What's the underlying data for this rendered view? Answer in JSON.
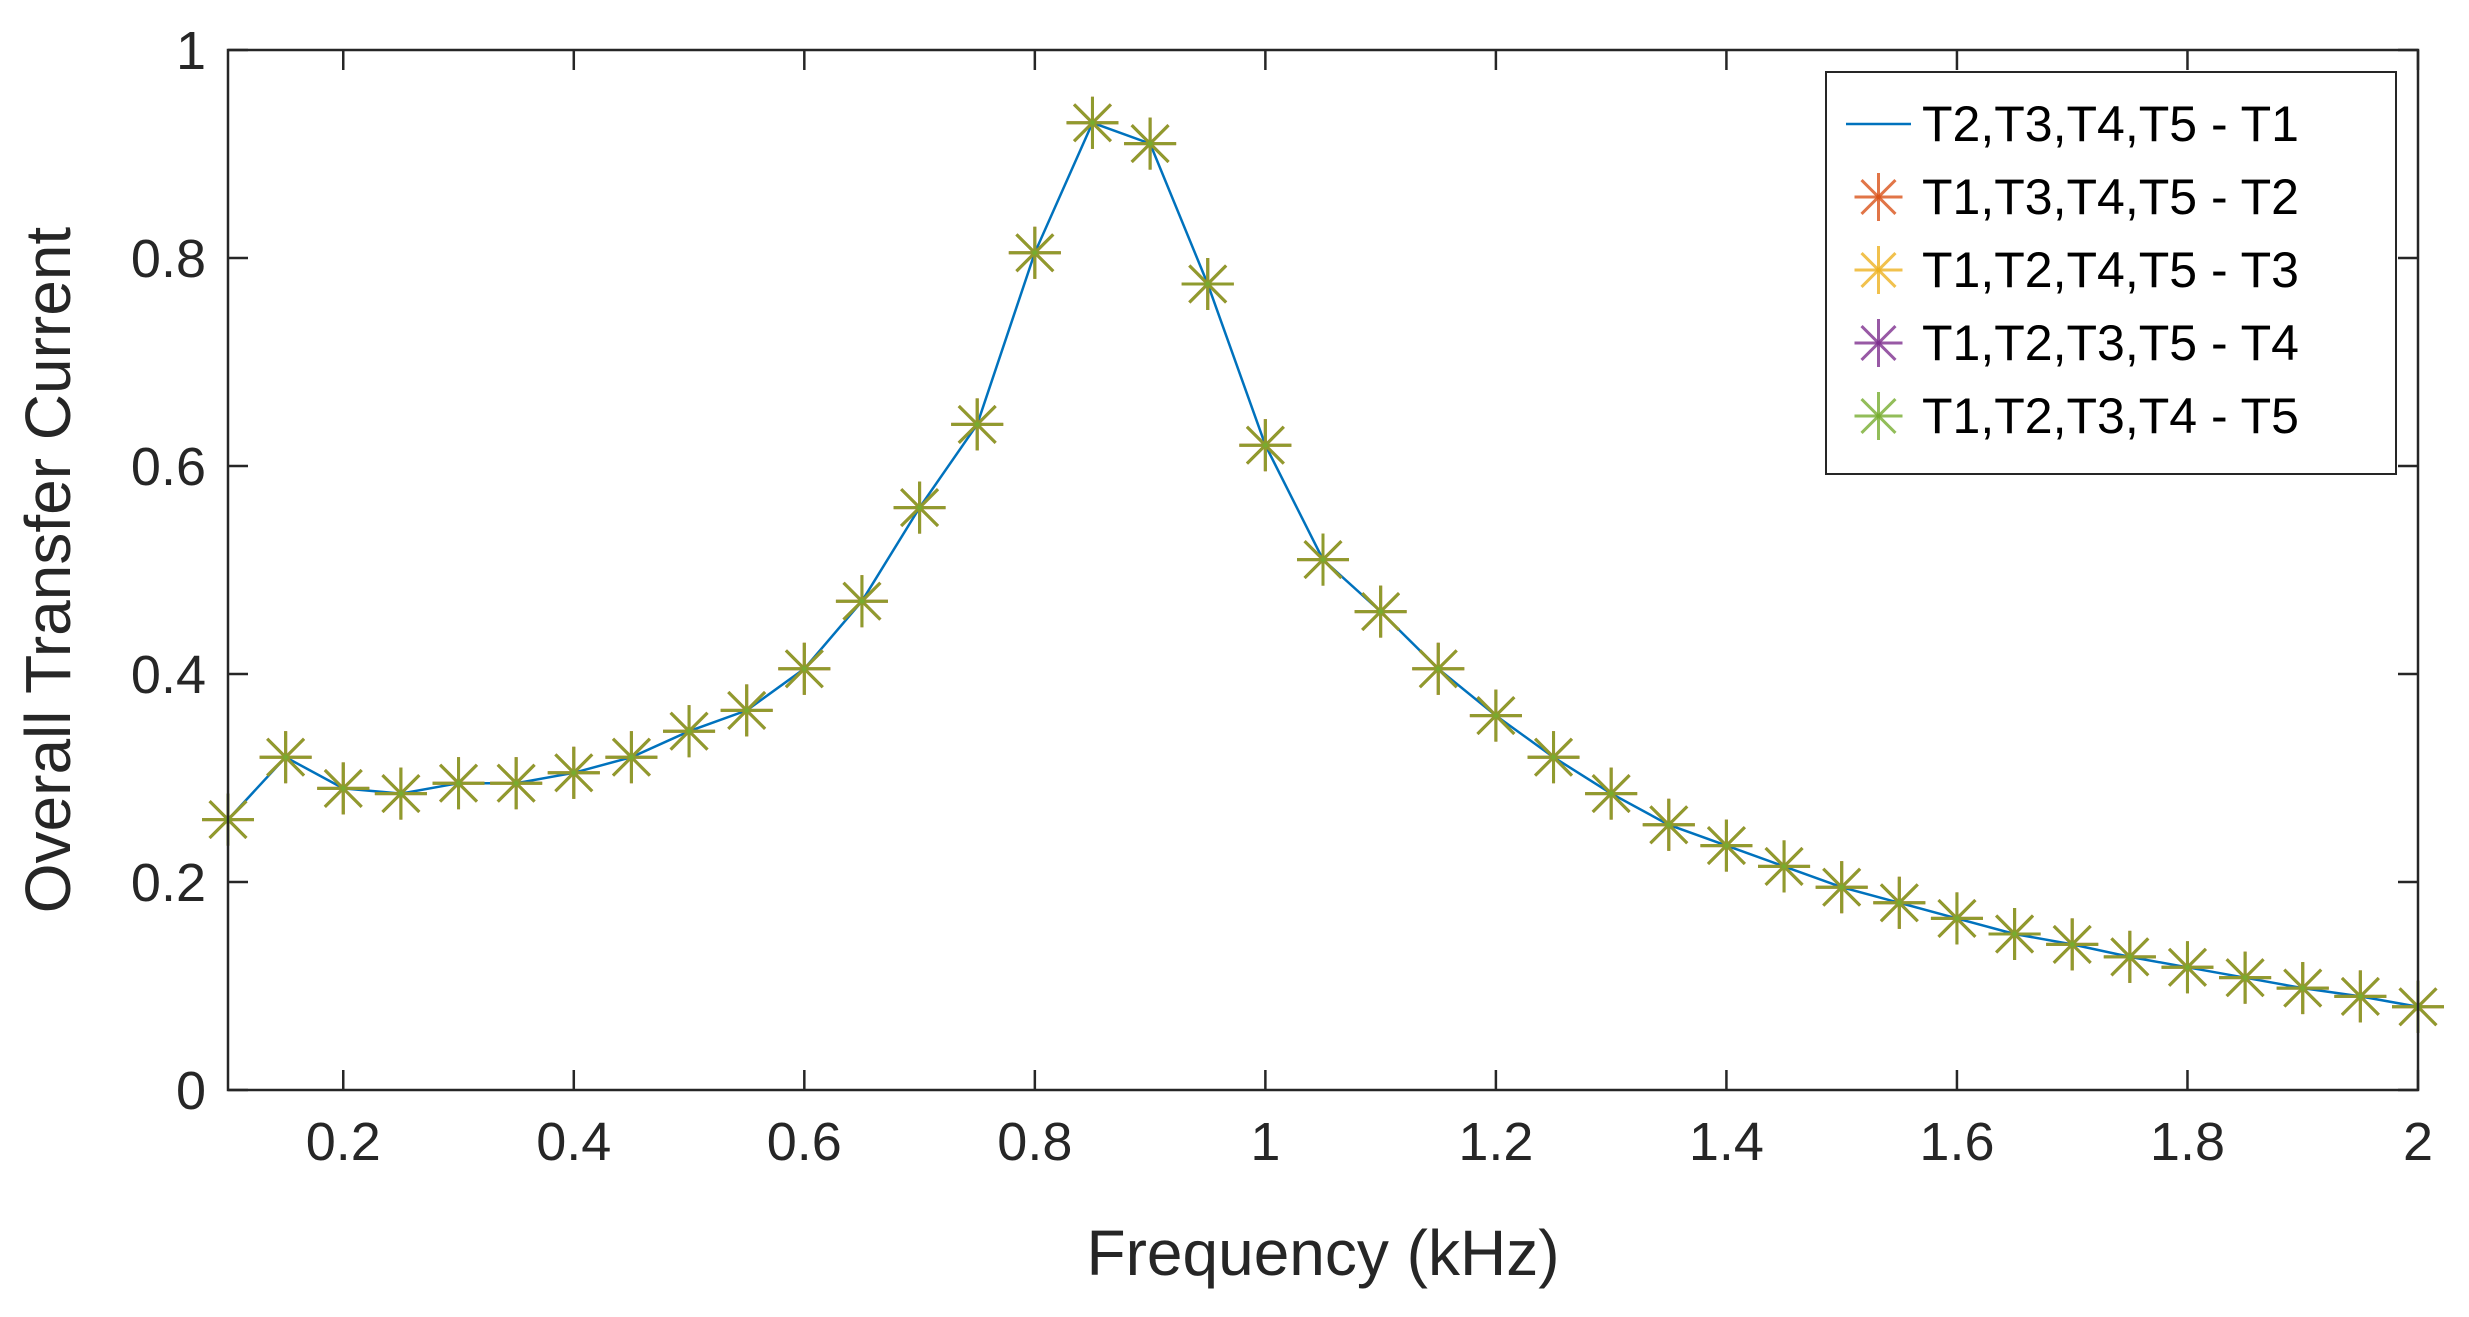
{
  "chart_data": {
    "type": "line",
    "title": "",
    "xlabel": "Frequency (kHz)",
    "ylabel": "Overall Transfer Current",
    "xlim": [
      0.1,
      2
    ],
    "ylim": [
      0,
      1
    ],
    "xticks": [
      0.2,
      0.4,
      0.6,
      0.8,
      1,
      1.2,
      1.4,
      1.6,
      1.8,
      2
    ],
    "xtick_labels": [
      "0.2",
      "0.4",
      "0.6",
      "0.8",
      "1",
      "1.2",
      "1.4",
      "1.6",
      "1.8",
      "2"
    ],
    "yticks": [
      0,
      0.2,
      0.4,
      0.6,
      0.8,
      1
    ],
    "ytick_labels": [
      "0",
      "0.2",
      "0.4",
      "0.6",
      "0.8",
      "1"
    ],
    "grid": false,
    "legend_position": "top-right",
    "x": [
      0.1,
      0.15,
      0.2,
      0.25,
      0.3,
      0.35,
      0.4,
      0.45,
      0.5,
      0.55,
      0.6,
      0.65,
      0.7,
      0.75,
      0.8,
      0.85,
      0.9,
      0.95,
      1.0,
      1.05,
      1.1,
      1.15,
      1.2,
      1.25,
      1.3,
      1.35,
      1.4,
      1.45,
      1.5,
      1.55,
      1.6,
      1.65,
      1.7,
      1.75,
      1.8,
      1.85,
      1.9,
      1.95,
      2.0
    ],
    "series": [
      {
        "name": "T2,T3,T4,T5 - T1",
        "color": "#0072BD",
        "style": "line",
        "values": [
          0.26,
          0.32,
          0.29,
          0.285,
          0.295,
          0.295,
          0.305,
          0.32,
          0.345,
          0.365,
          0.405,
          0.47,
          0.56,
          0.64,
          0.805,
          0.93,
          0.91,
          0.775,
          0.62,
          0.51,
          0.46,
          0.405,
          0.36,
          0.32,
          0.285,
          0.255,
          0.235,
          0.215,
          0.195,
          0.18,
          0.165,
          0.15,
          0.14,
          0.128,
          0.118,
          0.108,
          0.098,
          0.09,
          0.08
        ]
      },
      {
        "name": "T1,T3,T4,T5 - T2",
        "color": "#D95319",
        "style": "markers",
        "values": [
          0.26,
          0.32,
          0.29,
          0.285,
          0.295,
          0.295,
          0.305,
          0.32,
          0.345,
          0.365,
          0.405,
          0.47,
          0.56,
          0.64,
          0.805,
          0.93,
          0.91,
          0.775,
          0.62,
          0.51,
          0.46,
          0.405,
          0.36,
          0.32,
          0.285,
          0.255,
          0.235,
          0.215,
          0.195,
          0.18,
          0.165,
          0.15,
          0.14,
          0.128,
          0.118,
          0.108,
          0.098,
          0.09,
          0.08
        ]
      },
      {
        "name": "T1,T2,T4,T5 - T3",
        "color": "#EDB120",
        "style": "markers",
        "values": [
          0.26,
          0.32,
          0.29,
          0.285,
          0.295,
          0.295,
          0.305,
          0.32,
          0.345,
          0.365,
          0.405,
          0.47,
          0.56,
          0.64,
          0.805,
          0.93,
          0.91,
          0.775,
          0.62,
          0.51,
          0.46,
          0.405,
          0.36,
          0.32,
          0.285,
          0.255,
          0.235,
          0.215,
          0.195,
          0.18,
          0.165,
          0.15,
          0.14,
          0.128,
          0.118,
          0.108,
          0.098,
          0.09,
          0.08
        ]
      },
      {
        "name": "T1,T2,T3,T5 - T4",
        "color": "#7E2F8E",
        "style": "markers",
        "values": [
          0.26,
          0.32,
          0.29,
          0.285,
          0.295,
          0.295,
          0.305,
          0.32,
          0.345,
          0.365,
          0.405,
          0.47,
          0.56,
          0.64,
          0.805,
          0.93,
          0.91,
          0.775,
          0.62,
          0.51,
          0.46,
          0.405,
          0.36,
          0.32,
          0.285,
          0.255,
          0.235,
          0.215,
          0.195,
          0.18,
          0.165,
          0.15,
          0.14,
          0.128,
          0.118,
          0.108,
          0.098,
          0.09,
          0.08
        ]
      },
      {
        "name": "T1,T2,T3,T4 - T5",
        "color": "#77AC30",
        "style": "markers",
        "values": [
          0.26,
          0.32,
          0.29,
          0.285,
          0.295,
          0.295,
          0.305,
          0.32,
          0.345,
          0.365,
          0.405,
          0.47,
          0.56,
          0.64,
          0.805,
          0.93,
          0.91,
          0.775,
          0.62,
          0.51,
          0.46,
          0.405,
          0.36,
          0.32,
          0.285,
          0.255,
          0.235,
          0.215,
          0.195,
          0.18,
          0.165,
          0.15,
          0.14,
          0.128,
          0.118,
          0.108,
          0.098,
          0.09,
          0.08
        ]
      }
    ]
  }
}
